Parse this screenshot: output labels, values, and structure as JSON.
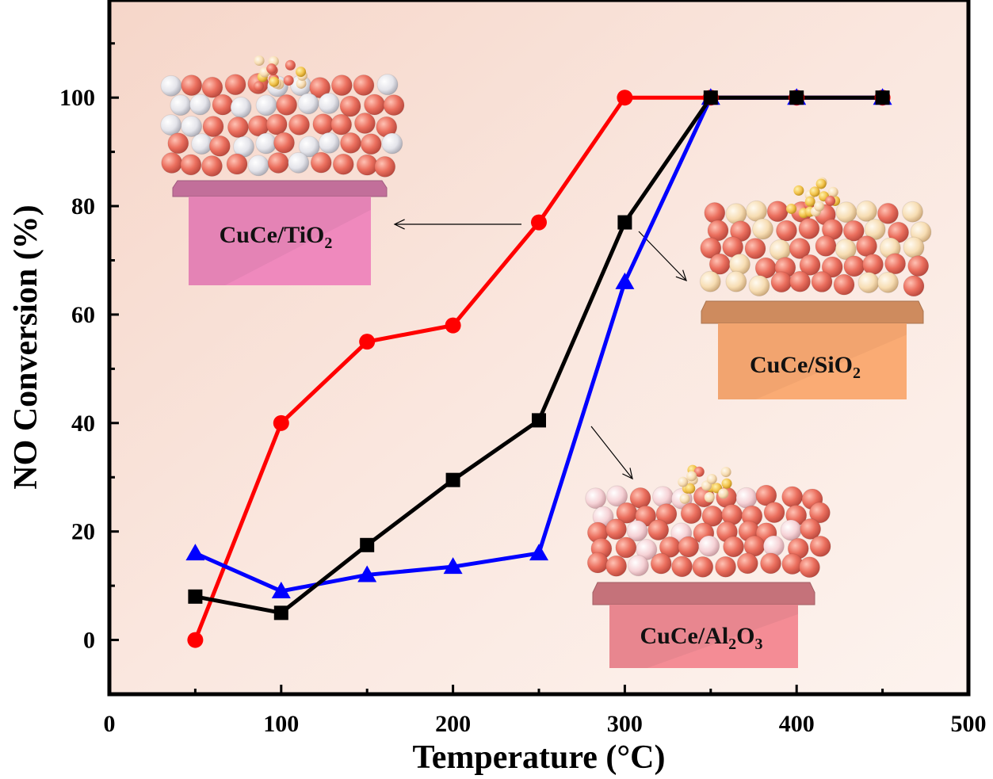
{
  "chart_data": {
    "type": "line",
    "xlabel": "Temperature (°C)",
    "ylabel": "NO Conversion (%)",
    "xlim": [
      0,
      500
    ],
    "ylim": [
      -10,
      118
    ],
    "xticks": [
      0,
      100,
      200,
      300,
      400,
      500
    ],
    "yticks": [
      0,
      20,
      40,
      60,
      80,
      100
    ],
    "grid": false,
    "background": "peach gradient",
    "x": [
      50,
      100,
      150,
      200,
      250,
      300,
      350,
      400,
      450
    ],
    "series": [
      {
        "label": "CuCe/TiO2",
        "color": "#ff0000",
        "marker": "circle",
        "values": [
          0,
          40,
          55,
          58,
          77,
          100,
          100,
          100,
          100
        ]
      },
      {
        "label": "CuCe/Al2O3",
        "color": "#0000ff",
        "marker": "triangle",
        "values": [
          16,
          9,
          12,
          13.5,
          16,
          66,
          100,
          100,
          100
        ]
      },
      {
        "label": "CuCe/SiO2",
        "color": "#000000",
        "marker": "square",
        "values": [
          8,
          5,
          17.5,
          29.5,
          40.5,
          77,
          100,
          100,
          100
        ]
      }
    ],
    "annotations": [
      {
        "kind": "label-box",
        "text": "CuCe/TiO",
        "sub": "2",
        "tail": "",
        "color": "#e483b5",
        "series": 0,
        "point": 4
      },
      {
        "kind": "label-box",
        "text": "CuCe/SiO",
        "sub": "2",
        "tail": "",
        "color": "#f2a46f",
        "series": 2,
        "point": 5
      },
      {
        "kind": "label-box",
        "text": "CuCe/Al",
        "sub": "2",
        "tail": "O",
        "sub2": "3",
        "color": "#e8868f",
        "series": 1,
        "point": 5
      }
    ]
  }
}
